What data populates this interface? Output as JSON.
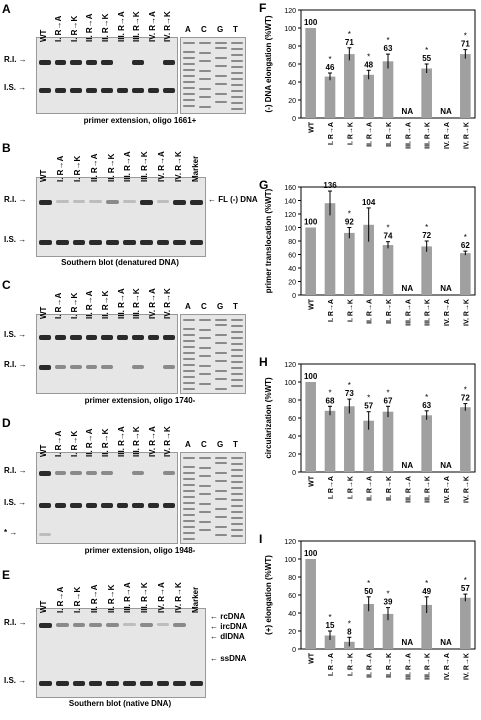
{
  "gel_panels": {
    "A": {
      "letter": "A",
      "lanes": [
        "WT",
        "I. R→A",
        "I. R→K",
        "II. R→A",
        "II. R→K",
        "III. R→A",
        "III. R→K",
        "IV. R→A",
        "IV. R→K"
      ],
      "seq_lanes": [
        "A",
        "C",
        "G",
        "T"
      ],
      "labels": [
        "R.I.",
        "I.S."
      ],
      "caption": "primer extension, oligo 1661+"
    },
    "B": {
      "letter": "B",
      "lanes": [
        "WT",
        "I. R→A",
        "I. R→K",
        "II. R→A",
        "II. R→K",
        "III. R→A",
        "III. R→K",
        "IV. R→A",
        "IV. R→K",
        "Marker"
      ],
      "labels": [
        "R.I.",
        "I.S."
      ],
      "right_label": "FL (-) DNA",
      "caption": "Southern blot (denatured DNA)"
    },
    "C": {
      "letter": "C",
      "lanes": [
        "WT",
        "I. R→A",
        "I. R→K",
        "II. R→A",
        "II. R→K",
        "III. R→A",
        "III. R→K",
        "IV. R→A",
        "IV. R→K"
      ],
      "seq_lanes": [
        "A",
        "C",
        "G",
        "T"
      ],
      "labels": [
        "I.S.",
        "R.I."
      ],
      "caption": "primer extension, oligo 1740-"
    },
    "D": {
      "letter": "D",
      "lanes": [
        "WT",
        "I. R→A",
        "I. R→K",
        "II. R→A",
        "II. R→K",
        "III. R→A",
        "III. R→K",
        "IV. R→A",
        "IV. R→K"
      ],
      "seq_lanes": [
        "A",
        "C",
        "G",
        "T"
      ],
      "labels": [
        "R.I.",
        "I.S.",
        "*"
      ],
      "caption": "primer extension, oligo 1948-"
    },
    "E": {
      "letter": "E",
      "lanes": [
        "WT",
        "I. R→A",
        "I. R→K",
        "II. R→A",
        "II. R→K",
        "III. R→A",
        "III. R→K",
        "IV. R→A",
        "IV. R→K",
        "Marker"
      ],
      "labels": [
        "R.I.",
        "I.S."
      ],
      "right_labels": [
        "rcDNA",
        "ircDNA",
        "dlDNA",
        "ssDNA"
      ],
      "caption": "Southern blot (native DNA)"
    }
  },
  "chart_data": [
    {
      "letter": "F",
      "type": "bar",
      "ylabel": "(-) DNA elongation (%WT)",
      "ylim": [
        0,
        120
      ],
      "yticks": [
        0,
        20,
        40,
        60,
        80,
        100,
        120
      ],
      "categories": [
        "WT",
        "I. R→A",
        "I. R→K",
        "II. R→A",
        "II. R→K",
        "III. R→A",
        "III. R→K",
        "IV. R→A",
        "IV. R→K"
      ],
      "values": [
        100,
        46,
        71,
        48,
        63,
        null,
        55,
        null,
        71
      ],
      "errors": [
        0,
        4,
        7,
        5,
        8,
        0,
        5,
        0,
        5
      ],
      "labels": [
        "100",
        "46",
        "71",
        "48",
        "63",
        "NA",
        "55",
        "NA",
        "71"
      ],
      "stars": [
        false,
        true,
        true,
        true,
        true,
        false,
        true,
        false,
        true
      ]
    },
    {
      "letter": "G",
      "type": "bar",
      "ylabel": "primer translocation (%WT)",
      "ylim": [
        0,
        160
      ],
      "yticks": [
        0,
        20,
        40,
        60,
        80,
        100,
        120,
        140,
        160
      ],
      "categories": [
        "WT",
        "I. R→A",
        "I. R→K",
        "II. R→A",
        "II. R→K",
        "III. R→A",
        "III. R→K",
        "IV. R→A",
        "IV. R→K"
      ],
      "values": [
        100,
        136,
        92,
        104,
        74,
        null,
        72,
        null,
        62
      ],
      "errors": [
        0,
        18,
        8,
        25,
        5,
        0,
        8,
        0,
        3
      ],
      "labels": [
        "100",
        "136",
        "92",
        "104",
        "74",
        "NA",
        "72",
        "NA",
        "62"
      ],
      "stars": [
        false,
        true,
        true,
        false,
        true,
        false,
        true,
        false,
        true
      ]
    },
    {
      "letter": "H",
      "type": "bar",
      "ylabel": "circularization (%WT)",
      "ylim": [
        0,
        120
      ],
      "yticks": [
        0,
        20,
        40,
        60,
        80,
        100,
        120
      ],
      "categories": [
        "WT",
        "I. R→A",
        "I. R→K",
        "II. R→A",
        "II. R→K",
        "III. R→A",
        "III. R→K",
        "IV. R→A",
        "IV. R→K"
      ],
      "values": [
        100,
        68,
        73,
        57,
        67,
        null,
        63,
        null,
        72
      ],
      "errors": [
        0,
        5,
        8,
        10,
        6,
        0,
        5,
        0,
        4
      ],
      "labels": [
        "100",
        "68",
        "73",
        "57",
        "67",
        "NA",
        "63",
        "NA",
        "72"
      ],
      "stars": [
        false,
        true,
        true,
        true,
        true,
        false,
        true,
        false,
        true
      ]
    },
    {
      "letter": "I",
      "type": "bar",
      "ylabel": "(+) elongation (%WT)",
      "ylim": [
        0,
        120
      ],
      "yticks": [
        0,
        20,
        40,
        60,
        80,
        100,
        120
      ],
      "categories": [
        "WT",
        "I. R→A",
        "I. R→K",
        "II. R→A",
        "II. R→K",
        "III. R→A",
        "III. R→K",
        "IV. R→A",
        "IV. R→K"
      ],
      "values": [
        100,
        15,
        8,
        50,
        39,
        null,
        49,
        null,
        57
      ],
      "errors": [
        0,
        5,
        5,
        8,
        7,
        0,
        9,
        0,
        4
      ],
      "labels": [
        "100",
        "15",
        "8",
        "50",
        "39",
        "NA",
        "49",
        "NA",
        "57"
      ],
      "stars": [
        false,
        true,
        true,
        true,
        true,
        false,
        true,
        false,
        true
      ]
    }
  ],
  "colors": {
    "bar": "#a0a0a0",
    "gel_bg": "#e6e6e6",
    "band": "#2a2a2a"
  }
}
